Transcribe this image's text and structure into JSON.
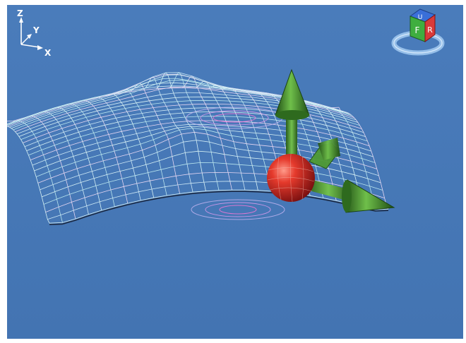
{
  "axes_triad": {
    "z_label": "Z",
    "y_label": "Y",
    "x_label": "X"
  },
  "view_cube": {
    "top_face": "U",
    "front_face": "F",
    "right_face": "R",
    "colors": {
      "top": "#3a6fd8",
      "front": "#3fae3f",
      "right": "#d83a3a",
      "ring": "#9fc6ee"
    }
  },
  "gizmo": {
    "sphere_color": "#e02a22",
    "arrow_color": "#3c8a2a",
    "icons": [
      "move-z-arrow-icon",
      "move-x-arrow-icon",
      "move-y-arrow-icon",
      "center-sphere-icon"
    ]
  },
  "viewport": {
    "background_color": "#4779b8",
    "mesh_color": "#cfeaf2"
  }
}
